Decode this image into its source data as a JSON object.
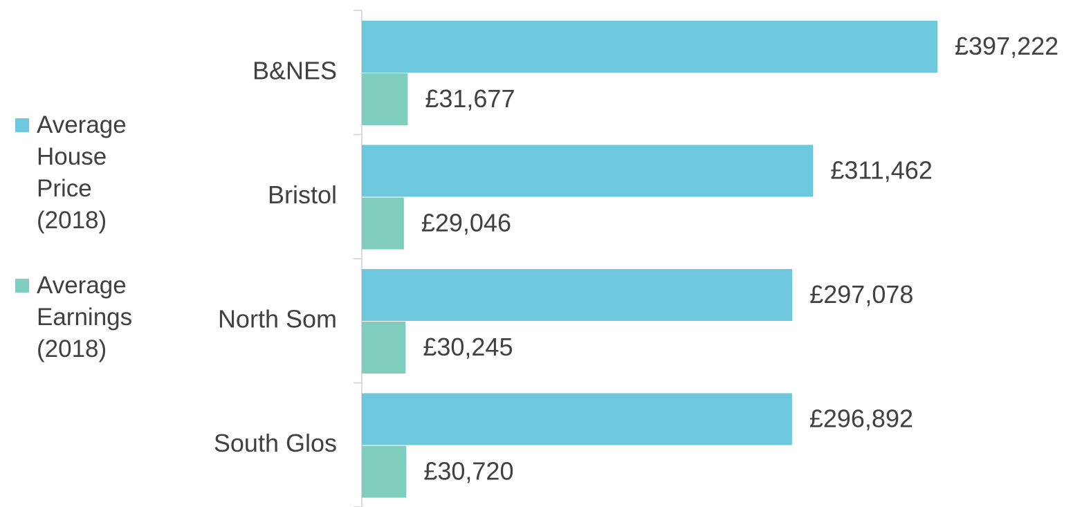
{
  "chart_data": {
    "type": "bar",
    "orientation": "horizontal",
    "categories": [
      "B&NES",
      "Bristol",
      "North Som",
      "South Glos"
    ],
    "series": [
      {
        "name": "Average House Price (2018)",
        "color": "#6dc8de",
        "values": [
          397222,
          311462,
          297078,
          296892
        ],
        "value_labels": [
          "£397,222",
          "£311,462",
          "£297,078",
          "£296,892"
        ]
      },
      {
        "name": "Average Earnings (2018)",
        "color": "#7ecdbd",
        "values": [
          31677,
          29046,
          30245,
          30720
        ],
        "value_labels": [
          "£31,677",
          "£29,046",
          "£30,245",
          "£30,720"
        ]
      }
    ],
    "legend": "left"
  }
}
